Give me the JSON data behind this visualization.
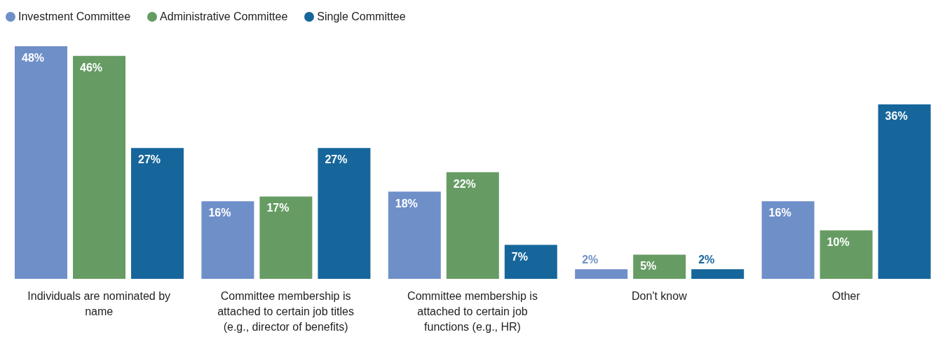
{
  "chart_data": {
    "type": "bar",
    "categories": [
      "Individuals are nominated by name",
      "Committee membership is attached to certain job titles (e.g., director of benefits)",
      "Committee membership is attached to certain job functions (e.g., HR)",
      "Don't know",
      "Other"
    ],
    "series": [
      {
        "name": "Investment Committee",
        "color": "#6f8fc9",
        "values": [
          48,
          16,
          18,
          2,
          16
        ],
        "value_labels": [
          "48%",
          "16%",
          "18%",
          "2%",
          "16%"
        ]
      },
      {
        "name": "Administrative Committee",
        "color": "#669c64",
        "values": [
          46,
          17,
          22,
          5,
          10
        ],
        "value_labels": [
          "46%",
          "17%",
          "22%",
          "5%",
          "10%"
        ]
      },
      {
        "name": "Single Committee",
        "color": "#16669c",
        "values": [
          27,
          27,
          7,
          2,
          36
        ],
        "value_labels": [
          "27%",
          "27%",
          "7%",
          "2%",
          "36%"
        ]
      }
    ],
    "legend": "top left",
    "grid": false
  }
}
